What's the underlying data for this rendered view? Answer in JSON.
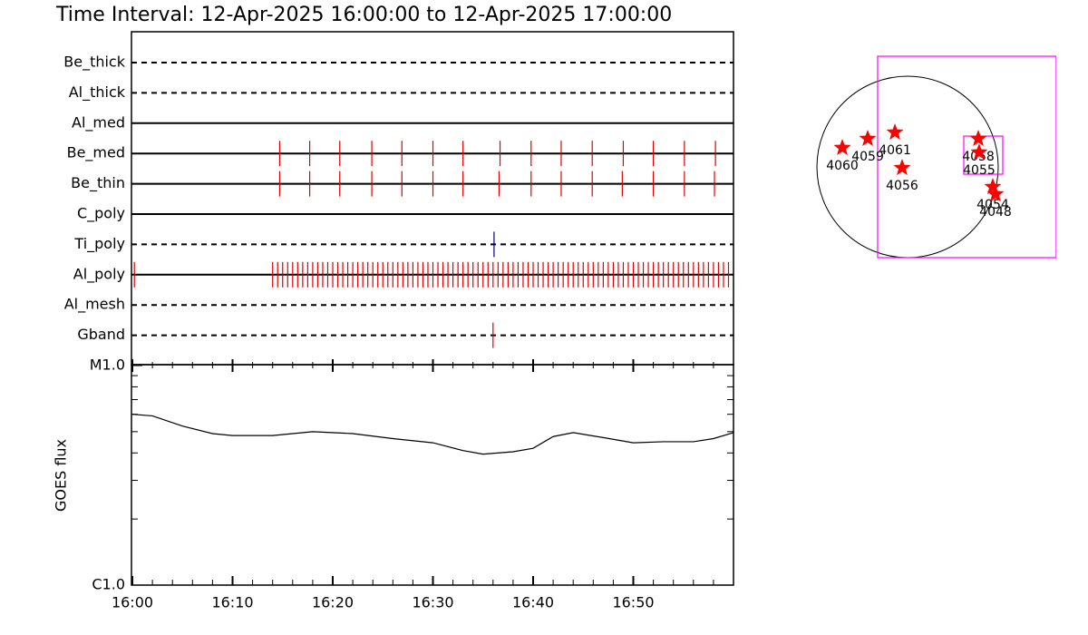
{
  "chart_data": [
    {
      "type": "timeline",
      "title": "Time Interval: 12-Apr-2025 16:00:00 to 12-Apr-2025 17:00:00",
      "rows": [
        {
          "name": "Be_thick",
          "line": "dashed",
          "color": "#e00000",
          "times": []
        },
        {
          "name": "Al_thick",
          "line": "dashed",
          "color": "#e00000",
          "times": []
        },
        {
          "name": "Al_med",
          "line": "solid",
          "color": "#e00000",
          "times": []
        },
        {
          "name": "Be_med",
          "line": "solid",
          "color": "#e00000",
          "times": [
            14.7,
            17.7,
            20.7,
            23.9,
            26.9,
            30.0,
            33.0,
            36.7,
            39.8,
            42.8,
            45.9,
            49.0,
            52.0,
            55.1,
            58.2
          ]
        },
        {
          "name": "Be_thin",
          "line": "solid",
          "color": "#e00000",
          "times": [
            14.7,
            17.7,
            20.7,
            23.9,
            26.9,
            30.0,
            33.0,
            36.6,
            39.8,
            42.8,
            45.9,
            48.9,
            52.0,
            55.1,
            58.1
          ]
        },
        {
          "name": "C_poly",
          "line": "solid",
          "color": "#e00000",
          "times": []
        },
        {
          "name": "Ti_poly",
          "line": "dashed",
          "color": "#00008b",
          "times": [
            36.1
          ]
        },
        {
          "name": "Al_poly",
          "line": "solid",
          "color": "#e00000",
          "times": [
            0.2,
            14,
            14.5,
            15,
            15.5,
            16,
            16.5,
            17,
            17.5,
            18,
            18.5,
            19,
            19.5,
            20,
            20.5,
            21,
            21.5,
            22,
            22.5,
            23,
            23.5,
            24,
            24.5,
            25,
            25.5,
            26,
            26.5,
            27,
            27.5,
            28,
            28.5,
            29,
            29.5,
            30,
            30.5,
            31,
            31.5,
            32,
            32.5,
            33,
            33.5,
            34,
            34.5,
            35,
            35.5,
            36,
            36.5,
            37,
            37.5,
            38,
            38.5,
            39,
            39.5,
            40,
            40.5,
            41,
            41.5,
            42,
            42.5,
            43,
            43.5,
            44,
            44.5,
            45,
            45.5,
            46,
            46.5,
            47,
            47.5,
            48,
            48.5,
            49,
            49.5,
            50,
            50.5,
            51,
            51.5,
            52,
            52.5,
            53,
            53.5,
            54,
            54.5,
            55,
            55.5,
            56,
            56.5,
            57,
            57.5,
            58,
            58.5,
            59,
            59.5
          ]
        },
        {
          "name": "Al_mesh",
          "line": "dashed",
          "color": "#e00000",
          "times": []
        },
        {
          "name": "Gband",
          "line": "dashed",
          "color": "#e00000",
          "times": [
            36.0
          ]
        }
      ]
    },
    {
      "type": "line",
      "ylabel": "GOES flux",
      "log_scale": true,
      "color": "#000000",
      "x": [
        0,
        2,
        5,
        8,
        10,
        14,
        18,
        22,
        26,
        30,
        33,
        35,
        38,
        40,
        42,
        44,
        47,
        50,
        53,
        56,
        58,
        60
      ],
      "values": [
        6e-06,
        5.9e-06,
        5.3e-06,
        4.9e-06,
        4.8e-06,
        4.8e-06,
        5e-06,
        4.9e-06,
        4.65e-06,
        4.45e-06,
        4.1e-06,
        3.95e-06,
        4.05e-06,
        4.2e-06,
        4.75e-06,
        4.95e-06,
        4.7e-06,
        4.45e-06,
        4.5e-06,
        4.5e-06,
        4.65e-06,
        4.95e-06
      ],
      "xlim": [
        0,
        60
      ],
      "xticks": [
        {
          "value": 0,
          "label": "16:00"
        },
        {
          "value": 10,
          "label": "16:10"
        },
        {
          "value": 20,
          "label": "16:20"
        },
        {
          "value": 30,
          "label": "16:30"
        },
        {
          "value": 40,
          "label": "16:40"
        },
        {
          "value": 50,
          "label": "16:50"
        }
      ],
      "xminorticks": [
        2,
        4,
        6,
        8,
        12,
        14,
        16,
        18,
        22,
        24,
        26,
        28,
        32,
        34,
        36,
        38,
        42,
        44,
        46,
        48,
        52,
        54,
        56,
        58
      ],
      "ylim": [
        1e-06,
        1e-05
      ],
      "yticks": [
        {
          "value": 1e-06,
          "label": "C1.0"
        },
        {
          "value": 1e-05,
          "label": "M1.0"
        }
      ],
      "yminorticks": [
        2e-06,
        3e-06,
        4e-06,
        5e-06,
        6e-06,
        7e-06,
        8e-06,
        9e-06
      ]
    },
    {
      "type": "map",
      "disk_radius": 960,
      "star_color": "#ff0000",
      "box_color": "#ff00ff",
      "regions": [
        {
          "label": "4060",
          "x": -691,
          "y": 202
        },
        {
          "label": "4059",
          "x": -422,
          "y": 298
        },
        {
          "label": "4061",
          "x": -134,
          "y": 365
        },
        {
          "label": "4056",
          "x": -58,
          "y": -10
        },
        {
          "label": "4058",
          "x": 749,
          "y": 298
        },
        {
          "label": "4055",
          "x": 758,
          "y": 154
        },
        {
          "label": "4054",
          "x": 902,
          "y": -211
        },
        {
          "label": "4048",
          "x": 931,
          "y": -288
        }
      ],
      "boxes": [
        {
          "xlim": [
            -317,
            1574
          ],
          "ylim": [
            -960,
            1171
          ]
        },
        {
          "xlim": [
            595,
            1008
          ],
          "ylim": [
            -77,
            326
          ]
        }
      ]
    }
  ]
}
